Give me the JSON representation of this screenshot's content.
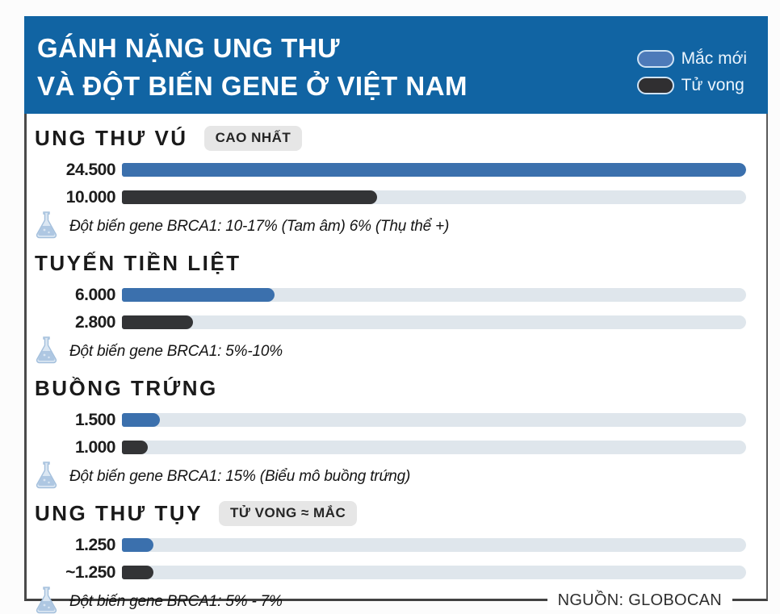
{
  "header": {
    "title_line1": "GÁNH NẶNG UNG THƯ",
    "title_line2": "VÀ ĐỘT BIẾN GENE Ở VIỆT NAM",
    "background": "#1164a3",
    "legend": {
      "new_cases": {
        "label": "Mắc mới",
        "color": "#4d7ab9"
      },
      "deaths": {
        "label": "Tử vong",
        "color": "#302f31"
      }
    }
  },
  "chart_data": {
    "type": "bar",
    "orientation": "horizontal",
    "max_value": 24500,
    "series": [
      {
        "name": "Mắc mới",
        "color": "#3b70ad"
      },
      {
        "name": "Tử vong",
        "color": "#333436"
      }
    ],
    "track_color": "#dfe6ec",
    "sections": [
      {
        "category": "UNG THƯ VÚ",
        "badge": "CAO NHẤT",
        "new_cases": {
          "label": "24.500",
          "value": 24500
        },
        "deaths": {
          "label": "10.000",
          "value": 10000
        },
        "note": "Đột biến gene BRCA1: 10-17% (Tam âm) 6% (Thụ thể +)"
      },
      {
        "category": "TUYẾN TIỀN LIỆT",
        "badge": null,
        "new_cases": {
          "label": "6.000",
          "value": 6000
        },
        "deaths": {
          "label": "2.800",
          "value": 2800
        },
        "note": "Đột biến gene BRCA1: 5%-10%"
      },
      {
        "category": "BUỒNG TRỨNG",
        "badge": null,
        "new_cases": {
          "label": "1.500",
          "value": 1500
        },
        "deaths": {
          "label": "1.000",
          "value": 1000
        },
        "note": "Đột biến gene BRCA1: 15% (Biểu mô buồng trứng)"
      },
      {
        "category": "UNG THƯ TỤY",
        "badge": "TỬ VONG ≈ MẮC",
        "new_cases": {
          "label": "1.250",
          "value": 1250
        },
        "deaths": {
          "label": "~1.250",
          "value": 1250
        },
        "note": "Đột biến gene BRCA1: 5% - 7%"
      }
    ],
    "source": "NGUỒN: GLOBOCAN"
  },
  "colors": {
    "header_bg": "#1164a3",
    "bar_new": "#3b70ad",
    "bar_death": "#333436",
    "bar_track": "#dfe6ec",
    "badge_bg": "#e6e6e6",
    "border": "#4a4a4a"
  }
}
